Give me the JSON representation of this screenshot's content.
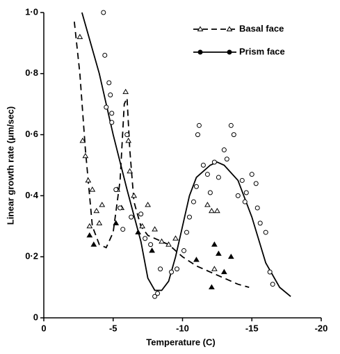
{
  "chart_data": {
    "type": "scatter",
    "x_label": "Temperature (C)",
    "y_label": "Linear growth rate (μm/sec)",
    "xlim": [
      0,
      -20
    ],
    "xticks": [
      0,
      -5,
      -10,
      -15,
      -20
    ],
    "ylim": [
      0,
      1.0
    ],
    "yticks": [
      0,
      {
        "value": 0.2,
        "label": "0·2"
      },
      {
        "value": 0.4,
        "label": "0·4"
      },
      {
        "value": 0.6,
        "label": "0·6"
      },
      {
        "value": 0.8,
        "label": "0·8"
      },
      {
        "value": 1.0,
        "label": "1·0"
      }
    ],
    "legend": "top-right",
    "series": [
      {
        "name": "Basal face",
        "color": "#000000",
        "marker": "triangle",
        "line": "dashed",
        "curve_x": [
          -2.2,
          -2.6,
          -3,
          -3.5,
          -4,
          -4.5,
          -5,
          -5.5,
          -5.8,
          -6,
          -6.2,
          -6.5,
          -7,
          -7.5,
          -8,
          -9,
          -10,
          -11,
          -12,
          -13,
          -14,
          -14.8
        ],
        "curve_values": [
          0.97,
          0.8,
          0.55,
          0.3,
          0.24,
          0.23,
          0.28,
          0.45,
          0.7,
          0.72,
          0.55,
          0.38,
          0.3,
          0.27,
          0.26,
          0.24,
          0.2,
          0.17,
          0.15,
          0.13,
          0.11,
          0.1
        ],
        "x": [
          -2.6,
          -2.8,
          -3,
          -3.2,
          -3.3,
          -3.5,
          -3.8,
          -4,
          -4.2,
          -5.3,
          -5.6,
          -5.9,
          -6.1,
          -6.2,
          -6.5,
          -7.1,
          -7.5,
          -8,
          -8.5,
          -9,
          -9.5,
          -11.8,
          -12.1,
          -12.5,
          -12.3
        ],
        "values": [
          0.92,
          0.58,
          0.53,
          0.45,
          0.3,
          0.42,
          0.35,
          0.31,
          0.37,
          0.42,
          0.36,
          0.74,
          0.58,
          0.48,
          0.4,
          0.3,
          0.37,
          0.29,
          0.25,
          0.24,
          0.26,
          0.37,
          0.35,
          0.35,
          0.16
        ],
        "filled_x": [
          -3.3,
          -3.6,
          -5.2,
          -6.8,
          -7.8,
          -11,
          -12.3,
          -12.6,
          -12.1,
          -13.5,
          -13
        ],
        "filled_values": [
          0.27,
          0.24,
          0.31,
          0.28,
          0.22,
          0.19,
          0.24,
          0.21,
          0.1,
          0.2,
          0.15
        ]
      },
      {
        "name": "Prism face",
        "color": "#000000",
        "marker": "circle",
        "line": "solid",
        "curve_x": [
          -2.75,
          -4,
          -5,
          -6,
          -7,
          -7.5,
          -8,
          -8.5,
          -9,
          -9.5,
          -10,
          -10.5,
          -11,
          -12,
          -12.5,
          -13,
          -14,
          -15,
          -16,
          -17,
          -17.8
        ],
        "curve_values": [
          1.0,
          0.8,
          0.6,
          0.42,
          0.25,
          0.13,
          0.09,
          0.09,
          0.12,
          0.2,
          0.3,
          0.4,
          0.46,
          0.5,
          0.51,
          0.5,
          0.45,
          0.33,
          0.18,
          0.1,
          0.07
        ],
        "x": [
          -4.3,
          -4.4,
          -4.5,
          -4.7,
          -4.8,
          -4.9,
          -4.9,
          -5.2,
          -5.5,
          -5.7,
          -6,
          -6.3,
          -7,
          -7.3,
          -7.7,
          -8,
          -8.2,
          -8.4,
          -9.2,
          -9.6,
          -10.1,
          -10.3,
          -10.5,
          -10.8,
          -11,
          -11.1,
          -11.2,
          -11.5,
          -11.8,
          -12,
          -12.3,
          -12.6,
          -13,
          -13.2,
          -13.5,
          -13.7,
          -14,
          -14.3,
          -14.6,
          -15,
          -15.3,
          -15.6,
          -16,
          -16.3,
          -16.5,
          -14.5,
          -15.4
        ],
        "values": [
          1.0,
          0.86,
          0.69,
          0.77,
          0.73,
          0.67,
          0.64,
          0.42,
          0.36,
          0.29,
          0.6,
          0.33,
          0.34,
          0.26,
          0.24,
          0.07,
          0.08,
          0.16,
          0.15,
          0.16,
          0.22,
          0.28,
          0.33,
          0.38,
          0.43,
          0.6,
          0.63,
          0.5,
          0.47,
          0.41,
          0.51,
          0.46,
          0.55,
          0.52,
          0.63,
          0.6,
          0.4,
          0.45,
          0.41,
          0.47,
          0.44,
          0.31,
          0.28,
          0.15,
          0.11,
          0.38,
          0.36
        ]
      }
    ]
  }
}
